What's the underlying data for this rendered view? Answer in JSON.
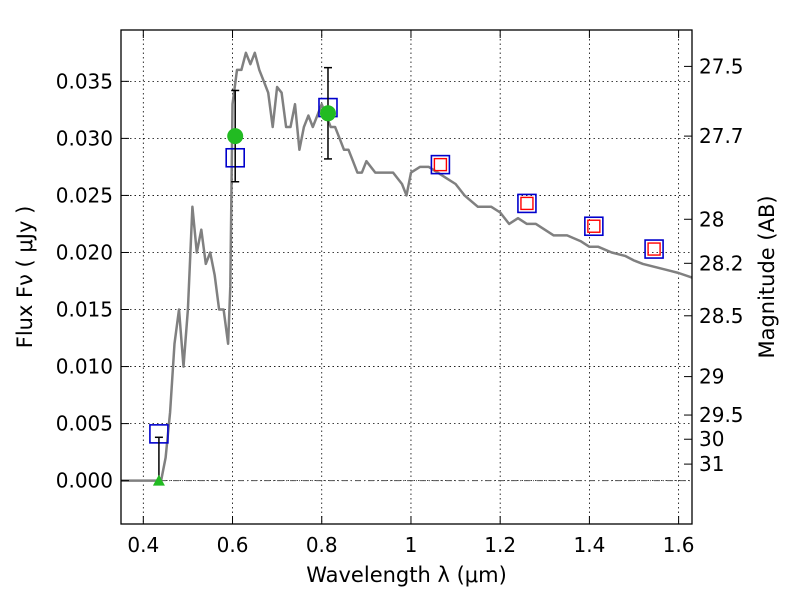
{
  "chart_data": {
    "type": "line",
    "xlabel": "Wavelength  λ (μm)",
    "ylabel": "Flux  Fν  ( μJy )",
    "y2label": "Magnitude (AB)",
    "xlim": [
      0.35,
      1.63
    ],
    "ylim": [
      -0.0038,
      0.0395
    ],
    "grid": true,
    "x_ticks": [
      0.4,
      0.6,
      0.8,
      1.0,
      1.2,
      1.4,
      1.6
    ],
    "x_tick_labels": [
      "0.4",
      "0.6",
      "0.8",
      "1",
      "1.2",
      "1.4",
      "1.6"
    ],
    "y_ticks": [
      0.0,
      0.005,
      0.01,
      0.015,
      0.02,
      0.025,
      0.03,
      0.035
    ],
    "y_tick_labels": [
      "0.000",
      "0.005",
      "0.010",
      "0.015",
      "0.020",
      "0.025",
      "0.030",
      "0.035"
    ],
    "y2_ticks": [
      {
        "flux": 0.03631,
        "label": "27.5"
      },
      {
        "flux": 0.0302,
        "label": "27.7"
      },
      {
        "flux": 0.02291,
        "label": "28"
      },
      {
        "flux": 0.01905,
        "label": "28.2"
      },
      {
        "flux": 0.01445,
        "label": "28.5"
      },
      {
        "flux": 0.00912,
        "label": "29"
      },
      {
        "flux": 0.00575,
        "label": "29.5"
      },
      {
        "flux": 0.00363,
        "label": "30"
      },
      {
        "flux": 0.00145,
        "label": "31"
      }
    ],
    "zero_line": true,
    "colors": {
      "model": "#808080",
      "model_phot": "#0000cc",
      "ir_phot_inner": "#ff0000",
      "detection": "#22bb22",
      "errorbar": "#000000",
      "zero_line": "#555555"
    },
    "series": [
      {
        "kind": "model_sed",
        "x": [
          0.35,
          0.42,
          0.44,
          0.45,
          0.46,
          0.47,
          0.48,
          0.49,
          0.5,
          0.51,
          0.52,
          0.53,
          0.54,
          0.55,
          0.56,
          0.57,
          0.58,
          0.59,
          0.595,
          0.6,
          0.61,
          0.62,
          0.63,
          0.64,
          0.65,
          0.66,
          0.67,
          0.68,
          0.69,
          0.7,
          0.71,
          0.72,
          0.73,
          0.74,
          0.75,
          0.76,
          0.77,
          0.78,
          0.79,
          0.8,
          0.81,
          0.82,
          0.83,
          0.84,
          0.85,
          0.86,
          0.87,
          0.88,
          0.89,
          0.9,
          0.92,
          0.94,
          0.96,
          0.98,
          0.99,
          1.0,
          1.02,
          1.04,
          1.06,
          1.08,
          1.1,
          1.12,
          1.15,
          1.18,
          1.2,
          1.22,
          1.24,
          1.26,
          1.28,
          1.3,
          1.32,
          1.35,
          1.38,
          1.4,
          1.42,
          1.45,
          1.48,
          1.5,
          1.52,
          1.55,
          1.58,
          1.6,
          1.63
        ],
        "y": [
          0.0,
          0.0,
          0.0,
          0.002,
          0.006,
          0.012,
          0.015,
          0.01,
          0.015,
          0.024,
          0.02,
          0.022,
          0.019,
          0.02,
          0.018,
          0.015,
          0.015,
          0.012,
          0.017,
          0.033,
          0.036,
          0.036,
          0.0375,
          0.0365,
          0.0375,
          0.036,
          0.035,
          0.034,
          0.031,
          0.0345,
          0.034,
          0.031,
          0.031,
          0.033,
          0.029,
          0.031,
          0.032,
          0.031,
          0.032,
          0.033,
          0.032,
          0.031,
          0.031,
          0.03,
          0.029,
          0.029,
          0.028,
          0.027,
          0.027,
          0.028,
          0.027,
          0.027,
          0.027,
          0.026,
          0.025,
          0.027,
          0.0275,
          0.0275,
          0.027,
          0.0265,
          0.026,
          0.025,
          0.024,
          0.024,
          0.0235,
          0.0225,
          0.023,
          0.0225,
          0.0225,
          0.022,
          0.0215,
          0.0215,
          0.021,
          0.0205,
          0.0205,
          0.02,
          0.0197,
          0.0193,
          0.019,
          0.0187,
          0.0184,
          0.0182,
          0.0178
        ]
      },
      {
        "kind": "model_photometry",
        "marker": "open_square",
        "x": [
          0.435,
          0.606,
          0.814,
          1.066,
          1.26,
          1.41,
          1.545
        ],
        "y": [
          0.0041,
          0.0283,
          0.0327,
          0.0277,
          0.0243,
          0.0223,
          0.0203
        ]
      },
      {
        "kind": "ir_photometry",
        "marker": "open_square",
        "x": [
          1.066,
          1.26,
          1.41,
          1.545
        ],
        "y": [
          0.0277,
          0.0243,
          0.0223,
          0.0203
        ]
      },
      {
        "kind": "detections",
        "marker": "filled_circle",
        "x": [
          0.606,
          0.814
        ],
        "y": [
          0.0302,
          0.0322
        ],
        "yerr": [
          0.004,
          0.004
        ]
      },
      {
        "kind": "upper_limit",
        "marker": "triangle",
        "x": [
          0.435
        ],
        "y": [
          0.0
        ],
        "y_upper": [
          0.0038
        ]
      }
    ]
  }
}
